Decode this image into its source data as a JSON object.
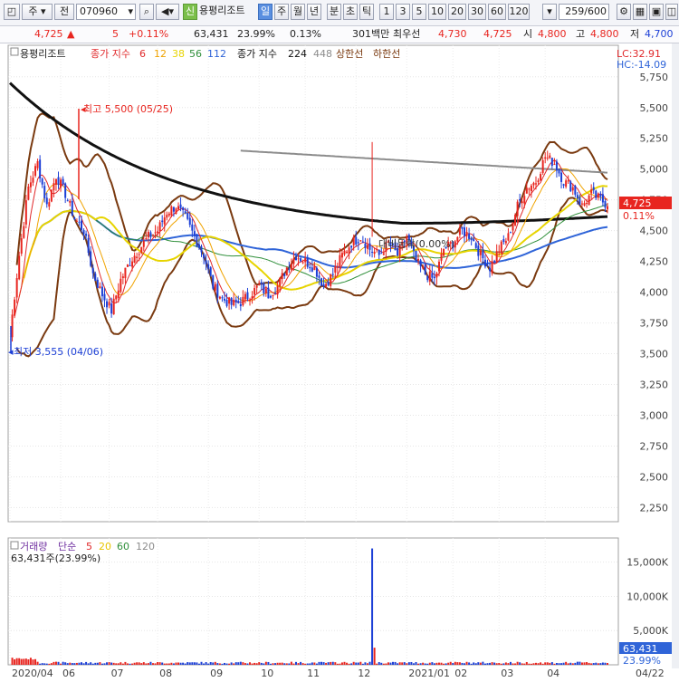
{
  "toolbar": {
    "market": "주",
    "type": "전",
    "code": "070960",
    "name": "용평리조트",
    "badge_new": "신",
    "period_day": "일",
    "period_week": "주",
    "period_month": "월",
    "period_year": "년",
    "period_min": "분",
    "period_sec": "초",
    "period_tick": "틱",
    "intervals": [
      "1",
      "3",
      "5",
      "10",
      "20",
      "30",
      "60",
      "120"
    ],
    "count": "259",
    "count_total": "/600"
  },
  "quote": {
    "price": "4,725",
    "arrow": "▲",
    "change": "5",
    "change_pct": "+0.11%",
    "volume": "63,431",
    "vol_ratio": "23.99%",
    "turnover": "0.13%",
    "amount": "301백만",
    "ask_label": "최우선",
    "ask": "4,730",
    "bid": "4,725",
    "open_label": "시",
    "open": "4,800",
    "high_label": "고",
    "high": "4,800",
    "low_label": "저",
    "low": "4,700"
  },
  "legend": {
    "name": "용평리조트",
    "ma_label": "종가 지수",
    "ma1": "6",
    "ma2": "12",
    "ma3": "38",
    "ma4": "56",
    "ma5": "112",
    "ma_label2": "종가 지수",
    "ma6": "224",
    "ma7": "448",
    "upper": "상한선",
    "lower": "하한선"
  },
  "colors": {
    "up": "#e8251f",
    "down": "#1c3fd6",
    "ma6": "#e0282a",
    "ma12": "#f0a300",
    "ma38": "#e7d400",
    "ma56": "#2f8f3a",
    "ma112": "#2f64d8",
    "ma224": "#111111",
    "ma448": "#8c8c8c",
    "band": "#7a3a10",
    "volume_label": "#7030a0"
  },
  "chart_data": {
    "type": "candlestick",
    "y_ticks": [
      "5,750",
      "5,500",
      "5,250",
      "5,000",
      "4,750",
      "4,500",
      "4,250",
      "4,000",
      "3,750",
      "3,500",
      "3,250",
      "3,000",
      "2,750",
      "2,500",
      "2,250"
    ],
    "ylim": [
      2150,
      5800
    ],
    "x_ticks": [
      "2020/04",
      "06",
      "07",
      "08",
      "09",
      "10",
      "11",
      "12",
      "2021/01",
      "02",
      "03",
      "04",
      "04/22"
    ],
    "last_price": "4,725",
    "last_change": "0.11%",
    "lc": "LC:32.91",
    "hc": "HC:-14.09",
    "annotations": {
      "high": "최고 5,500 (05/25)",
      "low": "최저 3,555 (04/06)",
      "mid": "대비등락(0.00%)"
    },
    "volume": {
      "label": "거래량",
      "ma_label": "단순",
      "ma1": "5",
      "ma2": "20",
      "ma3": "60",
      "ma4": "120",
      "current": "63,431주(23.99%)",
      "y_ticks": [
        "15,000K",
        "10,000K",
        "5,000K"
      ],
      "last": "63,431",
      "last_pct": "23.99%"
    },
    "price_points": [
      [
        0,
        3650
      ],
      [
        4,
        4300
      ],
      [
        8,
        4850
      ],
      [
        12,
        5050
      ],
      [
        16,
        4700
      ],
      [
        20,
        4950
      ],
      [
        24,
        4800
      ],
      [
        28,
        4600
      ],
      [
        32,
        4500
      ],
      [
        36,
        4150
      ],
      [
        40,
        3980
      ],
      [
        44,
        3850
      ],
      [
        48,
        4100
      ],
      [
        52,
        4250
      ],
      [
        56,
        4350
      ],
      [
        60,
        4450
      ],
      [
        64,
        4500
      ],
      [
        68,
        4650
      ],
      [
        72,
        4700
      ],
      [
        76,
        4600
      ],
      [
        80,
        4450
      ],
      [
        84,
        4300
      ],
      [
        88,
        4050
      ],
      [
        92,
        3950
      ],
      [
        96,
        3900
      ],
      [
        100,
        3920
      ],
      [
        104,
        3980
      ],
      [
        108,
        4050
      ],
      [
        112,
        3980
      ],
      [
        116,
        4050
      ],
      [
        120,
        4200
      ],
      [
        124,
        4300
      ],
      [
        128,
        4250
      ],
      [
        132,
        4200
      ],
      [
        136,
        4050
      ],
      [
        140,
        4150
      ],
      [
        144,
        4300
      ],
      [
        148,
        4400
      ],
      [
        152,
        4450
      ],
      [
        156,
        4350
      ],
      [
        160,
        4300
      ],
      [
        164,
        4400
      ],
      [
        168,
        4300
      ],
      [
        172,
        4450
      ],
      [
        176,
        4250
      ],
      [
        180,
        4150
      ],
      [
        184,
        4100
      ],
      [
        188,
        4350
      ],
      [
        192,
        4400
      ],
      [
        196,
        4500
      ],
      [
        200,
        4450
      ],
      [
        204,
        4300
      ],
      [
        208,
        4200
      ],
      [
        212,
        4350
      ],
      [
        216,
        4450
      ],
      [
        220,
        4700
      ],
      [
        224,
        4850
      ],
      [
        228,
        4900
      ],
      [
        232,
        5100
      ],
      [
        236,
        5050
      ],
      [
        240,
        4900
      ],
      [
        244,
        4850
      ],
      [
        248,
        4700
      ],
      [
        252,
        4800
      ],
      [
        256,
        4750
      ],
      [
        258,
        4725
      ]
    ]
  }
}
